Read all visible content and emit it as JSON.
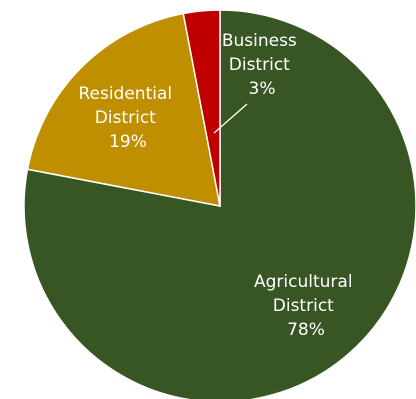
{
  "chart_data": {
    "type": "pie",
    "title": "",
    "slices": [
      {
        "name_lines": [
          "Agricultural",
          "District"
        ],
        "value": 78,
        "label_value": "78%",
        "color": "#375623"
      },
      {
        "name_lines": [
          "Residential",
          "District"
        ],
        "value": 19,
        "label_value": "19%",
        "color": "#BF8F00"
      },
      {
        "name_lines": [
          "Business",
          "District"
        ],
        "value": 3,
        "label_value": "3%",
        "color": "#C00000"
      }
    ],
    "start_angle_deg": 0,
    "direction": "clockwise",
    "legend": "none",
    "leader_line_for": "Business District"
  }
}
